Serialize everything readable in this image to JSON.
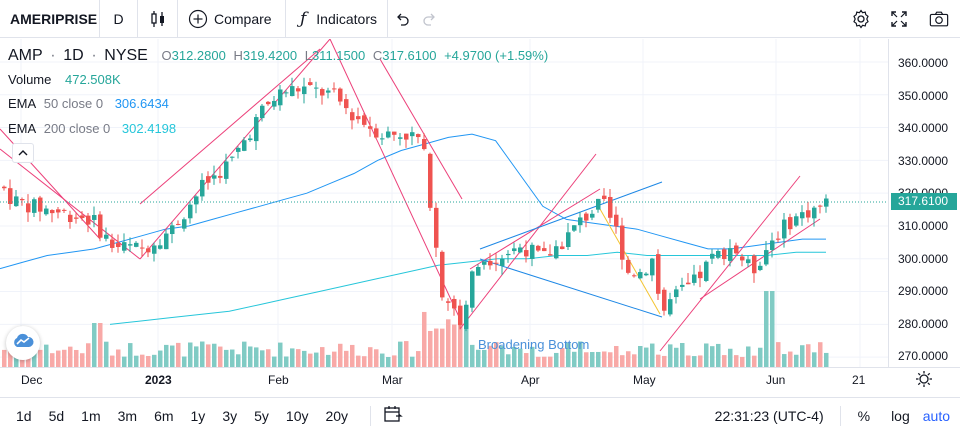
{
  "toolbar": {
    "symbol": "AMERIPRISE",
    "interval": "D",
    "compare_label": "Compare",
    "indicators_label": "Indicators"
  },
  "legend": {
    "symbol": "AMP",
    "interval": "1D",
    "exchange": "NYSE",
    "o_label": "O",
    "o_value": "312.2800",
    "h_label": "H",
    "h_value": "319.4200",
    "l_label": "L",
    "l_value": "311.1500",
    "c_label": "C",
    "c_value": "317.6100",
    "change": "+4.9700 (+1.59%)",
    "volume_label": "Volume",
    "volume_value": "472.508K",
    "ema50_label": "EMA",
    "ema50_params": "50 close 0",
    "ema50_value": "306.6434",
    "ema200_label": "EMA",
    "ema200_params": "200 close 0",
    "ema200_value": "302.4198"
  },
  "price_axis": {
    "labels": [
      "360.0000",
      "350.0000",
      "340.0000",
      "330.0000",
      "320.0000",
      "310.0000",
      "300.0000",
      "290.0000",
      "280.0000",
      "270.0000"
    ],
    "current_price": "317.6100"
  },
  "time_axis": {
    "labels": [
      "Dec",
      "2023",
      "Feb",
      "Mar",
      "Apr",
      "May",
      "Jun",
      "21"
    ]
  },
  "annotation": "Broadening Bottom",
  "ranges": [
    "1d",
    "5d",
    "1m",
    "3m",
    "6m",
    "1y",
    "3y",
    "5y",
    "10y",
    "20y"
  ],
  "clock": "22:31:23 (UTC-4)",
  "scale_options": {
    "percent": "%",
    "log": "log",
    "auto": "auto"
  },
  "colors": {
    "up": "#26a69a",
    "down": "#ef5350",
    "vol_up": "#80cbc4",
    "vol_down": "#f8a9a7",
    "ema50": "#2196f3",
    "ema200": "#26c6da",
    "trend": "#ec407a",
    "pattern": "#1e88e5",
    "accent": "#2962ff"
  },
  "chart_data": {
    "type": "candlestick",
    "symbol": "AMP",
    "interval": "1D",
    "price_range": [
      267,
      367
    ],
    "last": {
      "open": 312.28,
      "high": 319.42,
      "low": 311.15,
      "close": 317.61
    },
    "ema50_last": 306.6434,
    "ema200_last": 302.4198,
    "volume_last": "472.508K",
    "series": [
      {
        "name": "EMA 50 close 0",
        "values": [
          297,
          299,
          301,
          302,
          303,
          305,
          307,
          309,
          310,
          312,
          314,
          316,
          318,
          320,
          323,
          326,
          330,
          333,
          335,
          337,
          338,
          336,
          326,
          316,
          312,
          311,
          310,
          309,
          307,
          305,
          303,
          303,
          304,
          305,
          306,
          306
        ]
      },
      {
        "name": "EMA 200 close 0",
        "values": [
          280,
          281,
          282,
          283,
          284,
          286,
          288,
          290,
          292,
          294,
          296,
          298,
          299,
          300,
          300,
          301,
          301,
          302,
          301,
          301,
          301,
          301,
          301,
          302,
          302
        ]
      }
    ]
  }
}
